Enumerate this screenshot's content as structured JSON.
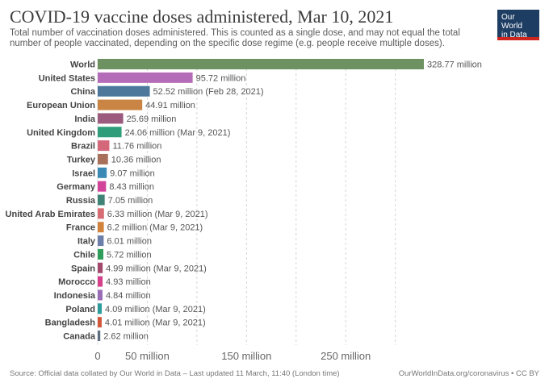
{
  "title": "COVID-19 vaccine doses administered, Mar 10, 2021",
  "subtitle": "Total number of vaccination doses administered. This is counted as a single dose, and may not equal the total number of people vaccinated, depending on the specific dose regime (e.g. people receive multiple doses).",
  "logo": {
    "line1": "Our World",
    "line2": "in Data"
  },
  "footer": {
    "source": "Source: Official data collated by Our World in Data – Last updated 11 March, 11:40 (London time)",
    "credit": "OurWorldInData.org/coronavirus • CC BY"
  },
  "chart_data": {
    "type": "bar",
    "orientation": "horizontal",
    "xlim": [
      0,
      330000000
    ],
    "grid": true,
    "ticks": [
      {
        "value": 0,
        "label": "0"
      },
      {
        "value": 50000000,
        "label": "50 million"
      },
      {
        "value": 150000000,
        "label": "150 million"
      },
      {
        "value": 250000000,
        "label": "250 million"
      }
    ],
    "bars": [
      {
        "category": "World",
        "value": 328770000,
        "label": "328.77 million",
        "color": "#6d9160"
      },
      {
        "category": "United States",
        "value": 95720000,
        "label": "95.72 million",
        "color": "#b56cb8"
      },
      {
        "category": "China",
        "value": 52520000,
        "label": "52.52 million (Feb 28, 2021)",
        "color": "#4d779b"
      },
      {
        "category": "European Union",
        "value": 44910000,
        "label": "44.91 million",
        "color": "#ca8443"
      },
      {
        "category": "India",
        "value": 25690000,
        "label": "25.69 million",
        "color": "#9b5a7e"
      },
      {
        "category": "United Kingdom",
        "value": 24060000,
        "label": "24.06 million (Mar 9, 2021)",
        "color": "#2f9c7a"
      },
      {
        "category": "Brazil",
        "value": 11760000,
        "label": "11.76 million",
        "color": "#d4677a"
      },
      {
        "category": "Turkey",
        "value": 10360000,
        "label": "10.36 million",
        "color": "#a8705a"
      },
      {
        "category": "Israel",
        "value": 9070000,
        "label": "9.07 million",
        "color": "#3b8ab5"
      },
      {
        "category": "Germany",
        "value": 8430000,
        "label": "8.43 million",
        "color": "#d1449a"
      },
      {
        "category": "Russia",
        "value": 7050000,
        "label": "7.05 million",
        "color": "#3f8377"
      },
      {
        "category": "United Arab Emirates",
        "value": 6330000,
        "label": "6.33 million (Mar 9, 2021)",
        "color": "#d66d74"
      },
      {
        "category": "France",
        "value": 6200000,
        "label": "6.2 million (Mar 9, 2021)",
        "color": "#d2843f"
      },
      {
        "category": "Italy",
        "value": 6010000,
        "label": "6.01 million",
        "color": "#6c7eaa"
      },
      {
        "category": "Chile",
        "value": 5720000,
        "label": "5.72 million",
        "color": "#2f9d5a"
      },
      {
        "category": "Spain",
        "value": 4990000,
        "label": "4.99 million (Mar 9, 2021)",
        "color": "#a4486e"
      },
      {
        "category": "Morocco",
        "value": 4930000,
        "label": "4.93 million",
        "color": "#d6408a"
      },
      {
        "category": "Indonesia",
        "value": 4840000,
        "label": "4.84 million",
        "color": "#9a6cb8"
      },
      {
        "category": "Poland",
        "value": 4090000,
        "label": "4.09 million (Mar 9, 2021)",
        "color": "#2a9d9a"
      },
      {
        "category": "Bangladesh",
        "value": 4010000,
        "label": "4.01 million (Mar 9, 2021)",
        "color": "#d2563a"
      },
      {
        "category": "Canada",
        "value": 2620000,
        "label": "2.62 million",
        "color": "#5e6e82"
      }
    ]
  }
}
